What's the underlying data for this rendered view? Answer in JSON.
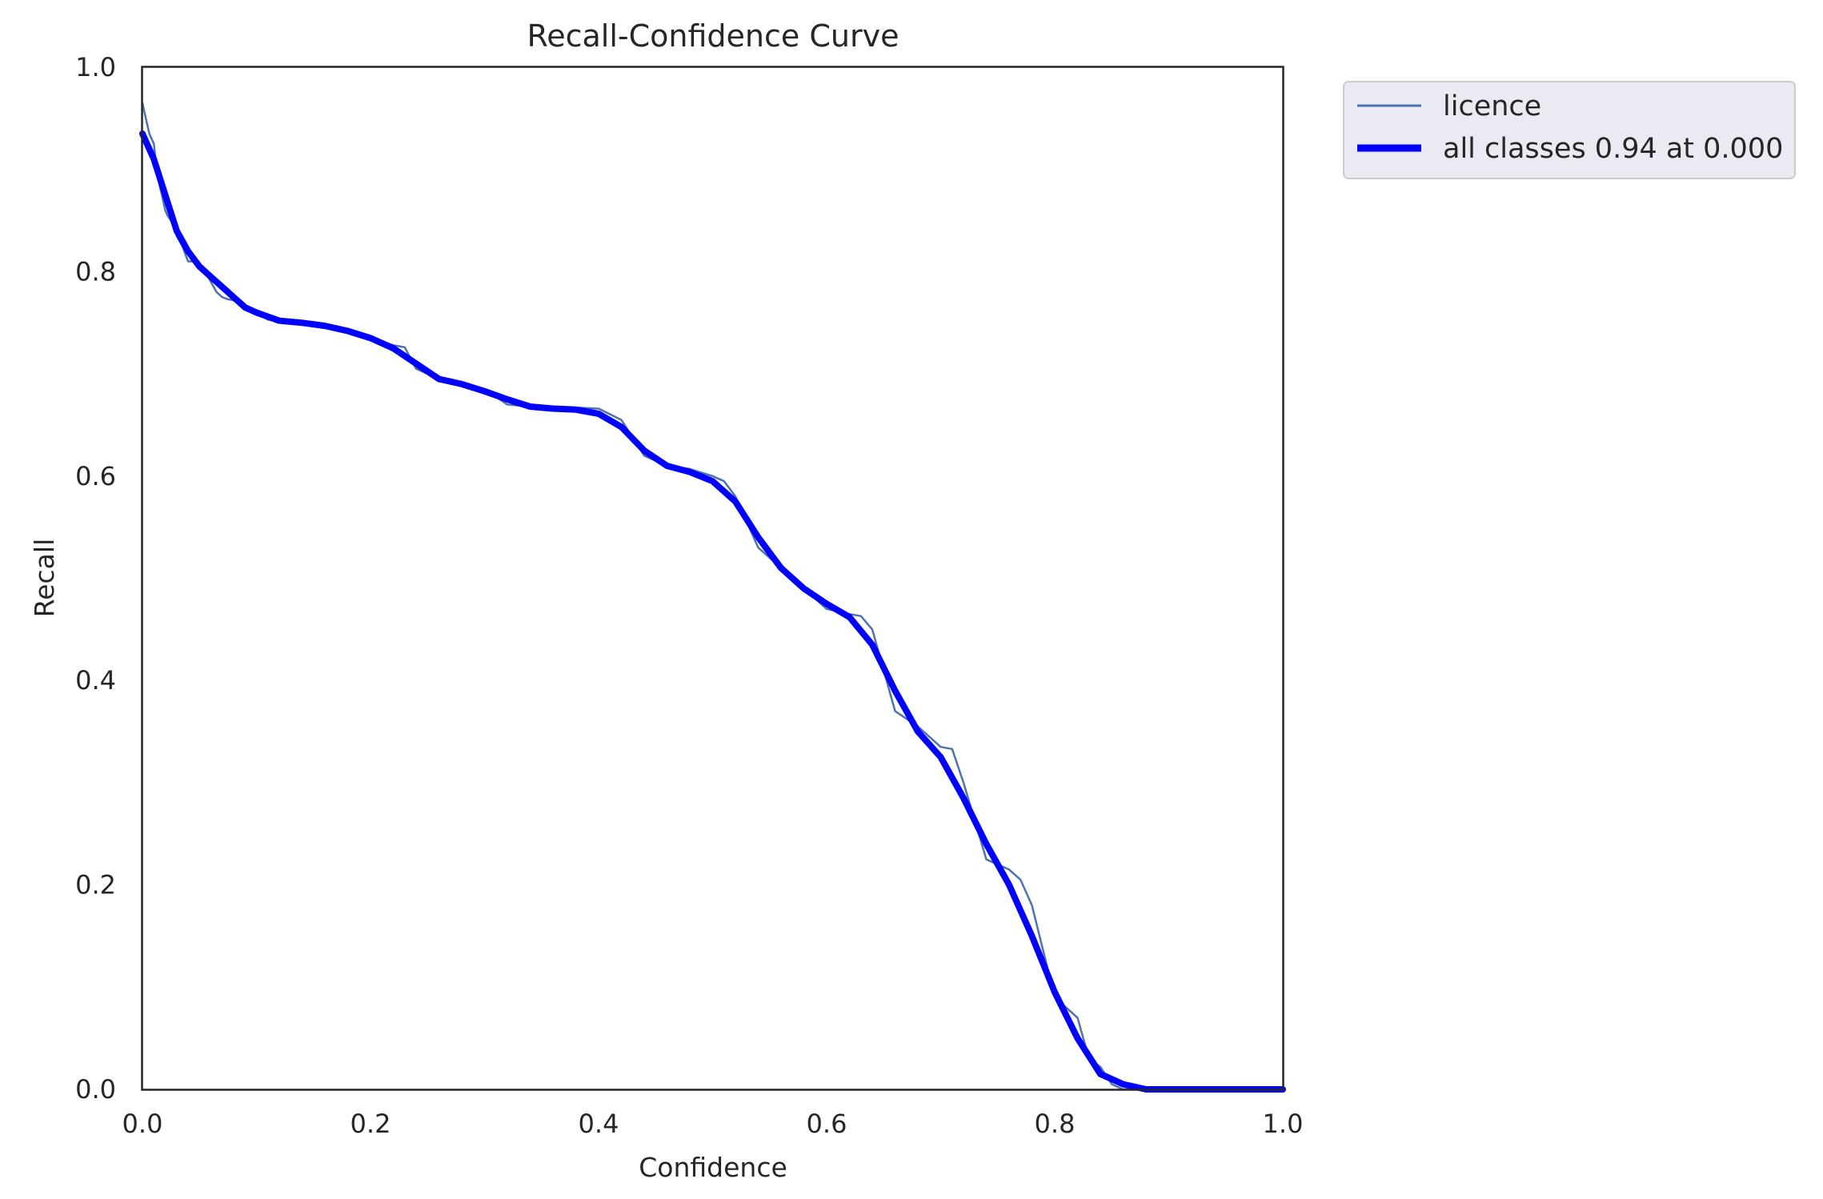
{
  "chart_data": {
    "type": "line",
    "title": "Recall-Confidence Curve",
    "xlabel": "Confidence",
    "ylabel": "Recall",
    "xlim": [
      0,
      1
    ],
    "ylim": [
      0,
      1
    ],
    "xticks": [
      "0.0",
      "0.2",
      "0.4",
      "0.6",
      "0.8",
      "1.0"
    ],
    "yticks": [
      "0.0",
      "0.2",
      "0.4",
      "0.6",
      "0.8",
      "1.0"
    ],
    "grid": false,
    "legend": "outside-top-right",
    "series": [
      {
        "name": "licence",
        "color": "#4c72b0",
        "x": [
          0.0,
          0.002,
          0.004,
          0.006,
          0.008,
          0.01,
          0.012,
          0.014,
          0.016,
          0.018,
          0.02,
          0.022,
          0.025,
          0.028,
          0.03,
          0.035,
          0.04,
          0.045,
          0.05,
          0.055,
          0.06,
          0.065,
          0.07,
          0.075,
          0.08,
          0.09,
          0.1,
          0.11,
          0.12,
          0.14,
          0.16,
          0.18,
          0.2,
          0.22,
          0.23,
          0.24,
          0.26,
          0.28,
          0.3,
          0.32,
          0.34,
          0.36,
          0.38,
          0.4,
          0.42,
          0.44,
          0.46,
          0.48,
          0.5,
          0.51,
          0.52,
          0.54,
          0.56,
          0.58,
          0.6,
          0.62,
          0.63,
          0.64,
          0.66,
          0.68,
          0.7,
          0.71,
          0.72,
          0.74,
          0.76,
          0.77,
          0.78,
          0.8,
          0.82,
          0.83,
          0.84,
          0.85,
          0.86,
          0.88,
          0.9,
          0.95,
          1.0
        ],
        "y": [
          0.965,
          0.955,
          0.945,
          0.935,
          0.93,
          0.925,
          0.905,
          0.89,
          0.88,
          0.87,
          0.86,
          0.855,
          0.85,
          0.845,
          0.835,
          0.825,
          0.81,
          0.81,
          0.808,
          0.8,
          0.79,
          0.78,
          0.775,
          0.773,
          0.772,
          0.765,
          0.76,
          0.753,
          0.752,
          0.75,
          0.746,
          0.74,
          0.735,
          0.728,
          0.726,
          0.705,
          0.695,
          0.69,
          0.685,
          0.67,
          0.668,
          0.667,
          0.667,
          0.666,
          0.655,
          0.62,
          0.61,
          0.607,
          0.6,
          0.595,
          0.58,
          0.53,
          0.51,
          0.49,
          0.47,
          0.465,
          0.463,
          0.45,
          0.37,
          0.355,
          0.335,
          0.333,
          0.3,
          0.225,
          0.215,
          0.205,
          0.18,
          0.09,
          0.07,
          0.03,
          0.022,
          0.005,
          0.0,
          0.0,
          0.0,
          0.0,
          0.0
        ]
      },
      {
        "name": "all classes 0.94 at 0.000",
        "color": "#0000ff",
        "x": [
          0.0,
          0.01,
          0.02,
          0.03,
          0.04,
          0.05,
          0.06,
          0.07,
          0.08,
          0.09,
          0.1,
          0.12,
          0.14,
          0.16,
          0.18,
          0.2,
          0.22,
          0.24,
          0.26,
          0.28,
          0.3,
          0.32,
          0.34,
          0.36,
          0.38,
          0.4,
          0.42,
          0.44,
          0.46,
          0.48,
          0.5,
          0.52,
          0.54,
          0.56,
          0.58,
          0.6,
          0.62,
          0.64,
          0.66,
          0.68,
          0.7,
          0.72,
          0.74,
          0.76,
          0.78,
          0.8,
          0.82,
          0.84,
          0.86,
          0.88,
          0.9,
          0.95,
          1.0
        ],
        "y": [
          0.935,
          0.91,
          0.875,
          0.84,
          0.82,
          0.805,
          0.795,
          0.785,
          0.775,
          0.765,
          0.76,
          0.752,
          0.75,
          0.747,
          0.742,
          0.735,
          0.725,
          0.71,
          0.695,
          0.69,
          0.683,
          0.675,
          0.668,
          0.666,
          0.665,
          0.661,
          0.648,
          0.625,
          0.61,
          0.604,
          0.595,
          0.575,
          0.54,
          0.51,
          0.49,
          0.475,
          0.462,
          0.435,
          0.39,
          0.35,
          0.325,
          0.285,
          0.24,
          0.2,
          0.15,
          0.095,
          0.05,
          0.015,
          0.005,
          0.0,
          0.0,
          0.0,
          0.0
        ]
      }
    ]
  }
}
